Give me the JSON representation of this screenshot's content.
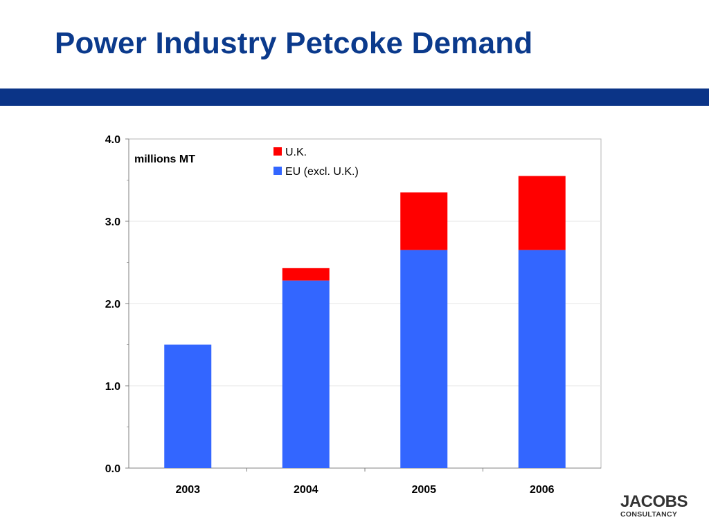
{
  "slide": {
    "title": "Power Industry Petcoke Demand"
  },
  "logo": {
    "name": "JACOBS",
    "subtitle": "CONSULTANCY"
  },
  "colors": {
    "title": "#0b3a8c",
    "band": "#0b3487",
    "uk": "#ff0000",
    "eu": "#3366ff"
  },
  "chart_data": {
    "type": "bar",
    "stacked": true,
    "title": "",
    "xlabel": "",
    "ylabel": "",
    "unit_label": "millions MT",
    "categories": [
      "2003",
      "2004",
      "2005",
      "2006"
    ],
    "series": [
      {
        "name": "EU (excl. U.K.)",
        "color": "#3366ff",
        "values": [
          1.5,
          2.28,
          2.65,
          2.65
        ]
      },
      {
        "name": "U.K.",
        "color": "#ff0000",
        "values": [
          0.0,
          0.15,
          0.7,
          0.9
        ]
      }
    ],
    "legend_order": [
      "U.K.",
      "EU (excl. U.K.)"
    ],
    "legend_position": "top-center",
    "ylim": [
      0,
      4
    ],
    "y_ticks": [
      "0.0",
      "1.0",
      "2.0",
      "3.0",
      "4.0"
    ],
    "grid": true
  }
}
